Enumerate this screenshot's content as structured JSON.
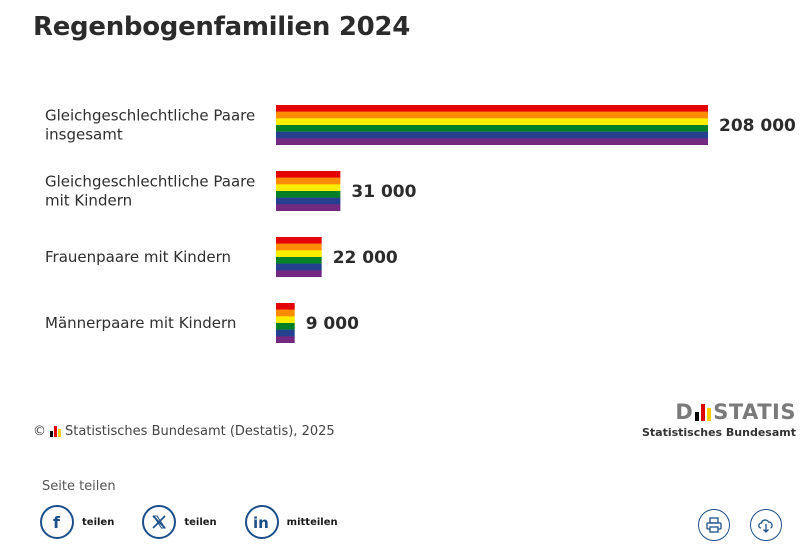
{
  "title": "Regenbogenfamilien 2024",
  "chart_data": {
    "type": "bar",
    "orientation": "horizontal",
    "title": "Regenbogenfamilien 2024",
    "categories": [
      [
        "Gleichgeschlechtliche Paare",
        "insgesamt"
      ],
      [
        "Gleichgeschlechtliche Paare",
        "mit Kindern"
      ],
      [
        "Frauenpaare mit Kindern"
      ],
      [
        "Männerpaare mit Kindern"
      ]
    ],
    "values": [
      208000,
      31000,
      22000,
      9000
    ],
    "value_labels": [
      "208 000",
      "31 000",
      "22 000",
      "9 000"
    ],
    "xlim": [
      0,
      208000
    ],
    "bar_fill": "rainbow-stripes",
    "rainbow_colors": [
      "#e40303",
      "#ff8c00",
      "#ffed00",
      "#008026",
      "#24408e",
      "#732982"
    ]
  },
  "footer": {
    "source": "Statistisches Bundesamt (Destatis), 2025",
    "copyright_symbol": "©",
    "logo_left": "D",
    "logo_right": "STATIS",
    "logo_subtitle": "Statistisches Bundesamt",
    "flag_colors": [
      "#000000",
      "#dd0000",
      "#ffce00"
    ]
  },
  "share": {
    "heading": "Seite teilen",
    "items": [
      {
        "label": "teilen",
        "icon": "facebook-icon"
      },
      {
        "label": "teilen",
        "icon": "x-icon"
      },
      {
        "label": "mitteilen",
        "icon": "linkedin-icon"
      }
    ]
  },
  "tools": [
    {
      "icon": "print-icon"
    },
    {
      "icon": "download-icon"
    }
  ]
}
